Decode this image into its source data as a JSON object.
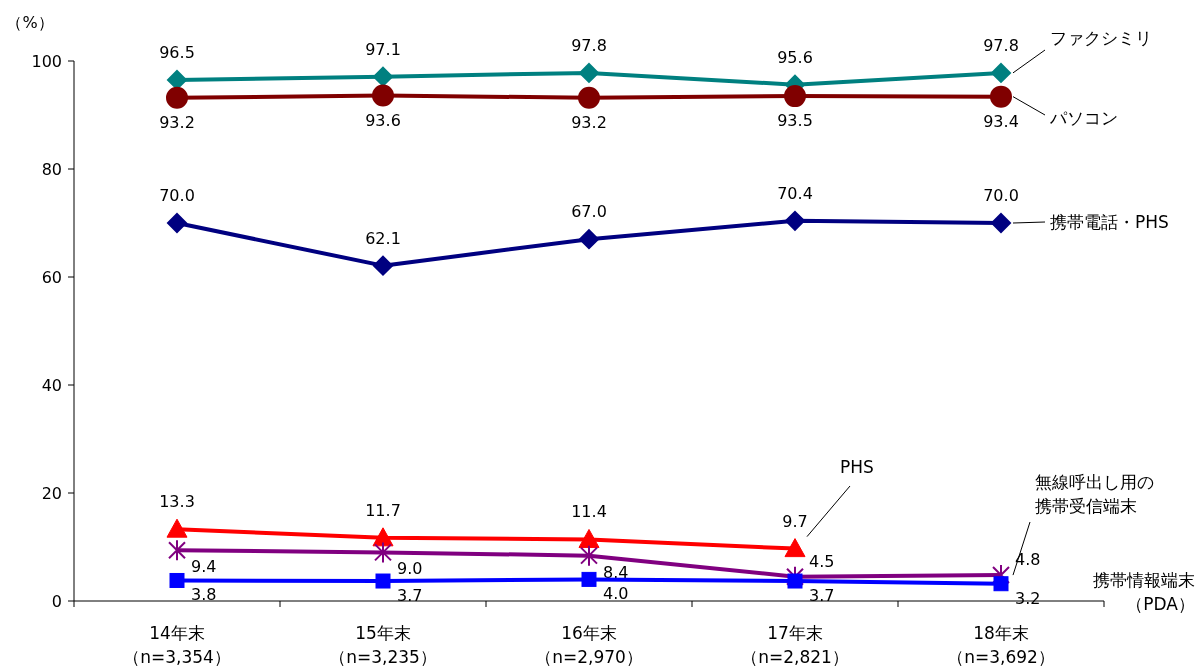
{
  "chart_data": {
    "type": "line",
    "ylabel": "（%）",
    "categories": [
      "14年末（n=3,354）",
      "15年末（n=3,235）",
      "16年末（n=2,970）",
      "17年末（n=2,821）",
      "18年末（n=3,692）"
    ],
    "ylim": [
      0,
      100
    ],
    "yticks": [
      0,
      20,
      40,
      60,
      80,
      100
    ],
    "grid": false,
    "series": [
      {
        "name": "ファクシミリ",
        "color": "#008080",
        "marker": "diamond",
        "values": [
          96.5,
          97.1,
          97.8,
          95.6,
          97.8
        ],
        "value_labels": [
          "96.5",
          "97.1",
          "97.8",
          "95.6",
          "97.8"
        ]
      },
      {
        "name": "パソコン",
        "color": "#800000",
        "marker": "circle",
        "values": [
          93.2,
          93.6,
          93.2,
          93.5,
          93.4
        ],
        "value_labels": [
          "93.2",
          "93.6",
          "93.2",
          "93.5",
          "93.4"
        ]
      },
      {
        "name": "携帯電話・PHS",
        "color": "#000080",
        "marker": "diamond",
        "values": [
          70.0,
          62.1,
          67.0,
          70.4,
          70.0
        ],
        "value_labels": [
          "70.0",
          "62.1",
          "67.0",
          "70.4",
          "70.0"
        ]
      },
      {
        "name": "PHS",
        "color": "#ff0000",
        "marker": "triangle",
        "values": [
          13.3,
          11.7,
          11.4,
          9.7,
          null
        ],
        "value_labels": [
          "13.3",
          "11.7",
          "11.4",
          "9.7",
          null
        ]
      },
      {
        "name": "無線呼出し用の携帯受信端末",
        "color": "#800080",
        "marker": "cross",
        "values": [
          9.4,
          9.0,
          8.4,
          4.5,
          4.8
        ],
        "value_labels": [
          "9.4",
          "9.0",
          "8.4",
          "4.5",
          "4.8"
        ]
      },
      {
        "name": "携帯情報端末（PDA）",
        "color": "#0000ff",
        "marker": "square",
        "values": [
          3.8,
          3.7,
          4.0,
          3.7,
          3.2
        ],
        "value_labels": [
          "3.8",
          "3.7",
          "4.0",
          "3.7",
          "3.2"
        ]
      }
    ]
  }
}
